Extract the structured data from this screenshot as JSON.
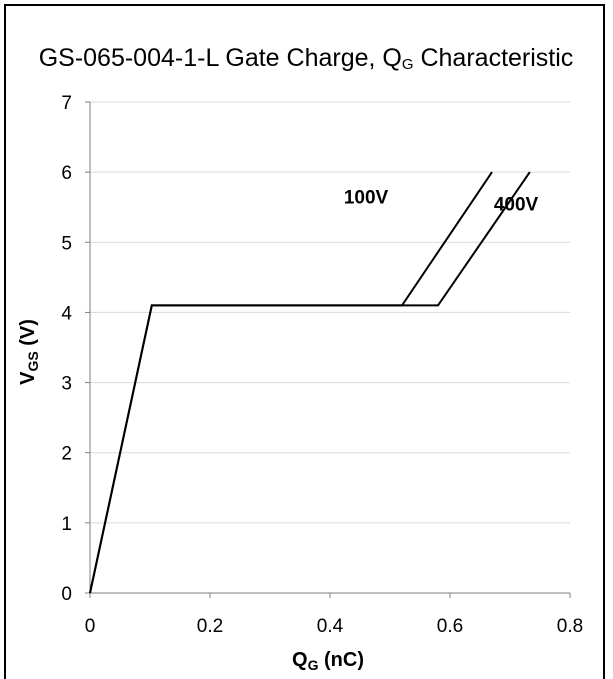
{
  "chart_data": {
    "type": "line",
    "title": {
      "prefix": "GS-065-004-1-L Gate Charge, Q",
      "sub": "G",
      "suffix": " Characteristic"
    },
    "xlabel": {
      "main": "Q",
      "sub": "G",
      "rest": " (nC)"
    },
    "ylabel": {
      "main": "V",
      "sub": "GS",
      "rest": " (V)"
    },
    "xlim": [
      0,
      0.8
    ],
    "ylim": [
      0,
      7
    ],
    "x_ticks": [
      0,
      0.2,
      0.4,
      0.6,
      0.8
    ],
    "x_tick_labels": [
      "0",
      "0.2",
      "0.4",
      "0.6",
      "0.8"
    ],
    "y_ticks": [
      0,
      1,
      2,
      3,
      4,
      5,
      6,
      7
    ],
    "y_tick_labels": [
      "0",
      "1",
      "2",
      "3",
      "4",
      "5",
      "6",
      "7"
    ],
    "grid": "horizontal",
    "series": [
      {
        "name": "100V",
        "x": [
          0,
          0.103,
          0.52,
          0.67
        ],
        "y": [
          0,
          4.1,
          4.1,
          6.0
        ],
        "label_at": [
          0.46,
          5.55
        ]
      },
      {
        "name": "400V",
        "x": [
          0,
          0.103,
          0.58,
          0.733
        ],
        "y": [
          0,
          4.1,
          4.1,
          6.0
        ],
        "label_at": [
          0.71,
          5.45
        ]
      }
    ]
  }
}
